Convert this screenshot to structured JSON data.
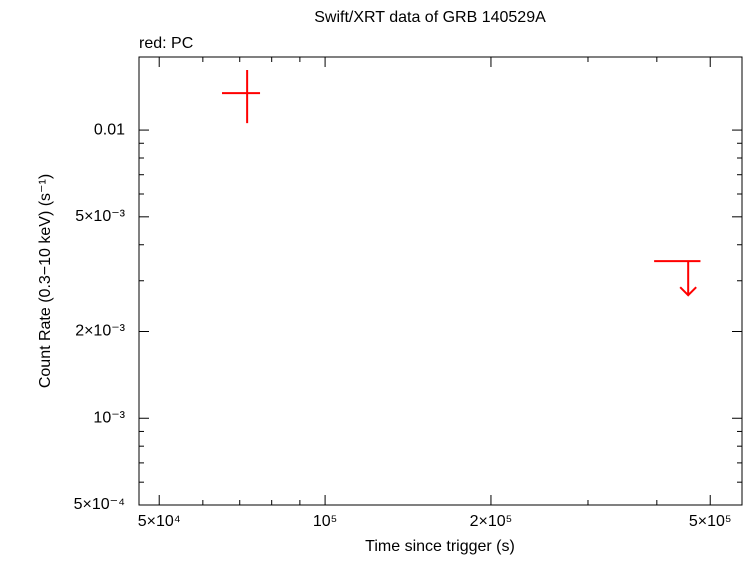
{
  "chart_data": {
    "type": "scatter",
    "title": "Swift/XRT data of GRB 140529A",
    "subtitle": "red: PC",
    "x_label": "Time since trigger (s)",
    "y_label": "Count Rate (0.3−10 keV) (s⁻¹)",
    "xscale": "log",
    "yscale": "log",
    "xlim": [
      45950,
      571000
    ],
    "ylim": [
      0.0005,
      0.01793
    ],
    "xticks": [
      {
        "value": 50000,
        "label": "5×10⁴"
      },
      {
        "value": 100000,
        "label": "10⁵"
      },
      {
        "value": 200000,
        "label": "2×10⁵"
      },
      {
        "value": 500000,
        "label": "5×10⁵"
      }
    ],
    "xminor_ticks": [
      60000,
      70000,
      80000,
      90000,
      300000,
      400000
    ],
    "yticks": [
      {
        "value": 0.0005,
        "label": "5×10⁻⁴"
      },
      {
        "value": 0.001,
        "label": "10⁻³"
      },
      {
        "value": 0.002,
        "label": "2×10⁻³"
      },
      {
        "value": 0.005,
        "label": "5×10⁻³"
      },
      0.01
    ],
    "yminor_ticks": [
      0.0006,
      0.0007,
      0.0008,
      0.0009,
      0.003,
      0.004,
      0.006,
      0.007,
      0.008,
      0.009
    ],
    "series": [
      {
        "color": "#ff0000",
        "x": [
          72200
        ],
        "xlow": [
          65000
        ],
        "xhigh": [
          76200
        ],
        "y": [
          0.01344
        ],
        "ylow": [
          0.01057
        ],
        "yhigh": [
          0.01616
        ]
      }
    ],
    "upper_limits": {
      "color": "#ff0000",
      "x": [
        456000
      ],
      "xlow": [
        395500
      ],
      "xhigh": [
        480000
      ],
      "y": [
        0.003508
      ]
    }
  }
}
